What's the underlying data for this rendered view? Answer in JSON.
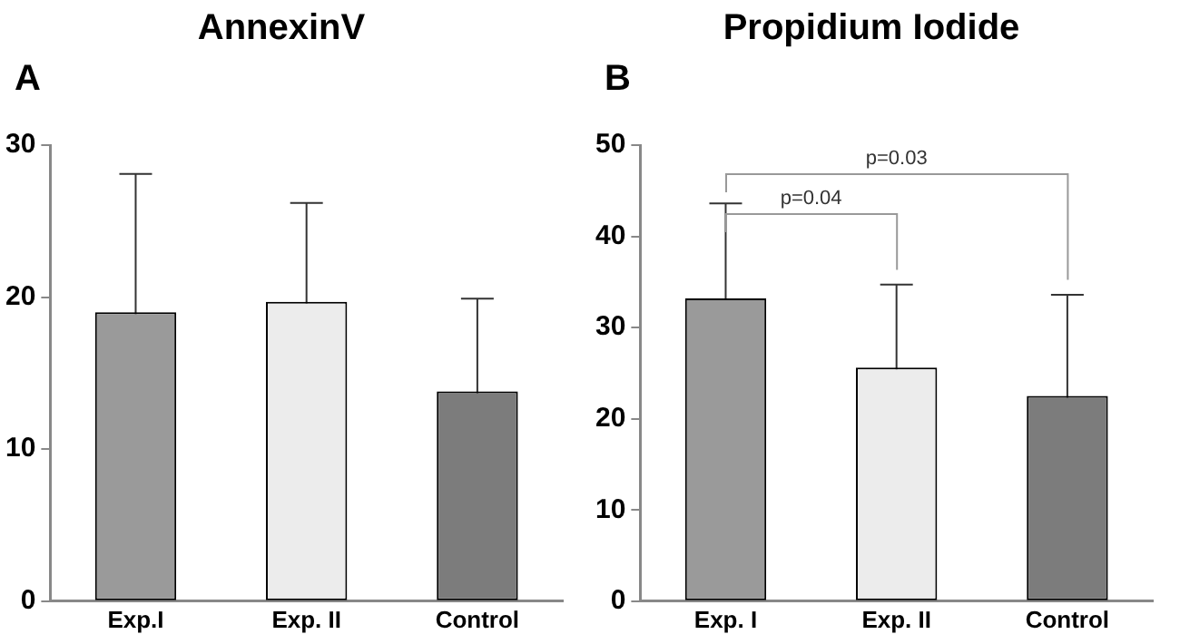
{
  "chart_data": [
    {
      "type": "bar",
      "title": "AnnexinV",
      "annotations": [
        "A"
      ],
      "categories": [
        "Exp.I",
        "Exp. II",
        "Control"
      ],
      "values": [
        19.0,
        19.7,
        13.8
      ],
      "errors": [
        9.1,
        6.5,
        6.1
      ],
      "colors": [
        "#9a9a9a",
        "#ececec",
        "#7c7c7c"
      ],
      "ylim": [
        0,
        30
      ],
      "yticks": [
        0,
        10,
        20,
        30
      ]
    },
    {
      "type": "bar",
      "title": "Propidium Iodide",
      "annotations": [
        "B",
        "p=0.04",
        "p=0.03"
      ],
      "categories": [
        "Exp. I",
        "Exp. II",
        "Control"
      ],
      "values": [
        33.2,
        25.6,
        22.5
      ],
      "errors": [
        10.4,
        9.1,
        11.1
      ],
      "colors": [
        "#9a9a9a",
        "#ececec",
        "#7c7c7c"
      ],
      "ylim": [
        0,
        50
      ],
      "yticks": [
        0,
        10,
        20,
        30,
        40,
        50
      ]
    }
  ]
}
